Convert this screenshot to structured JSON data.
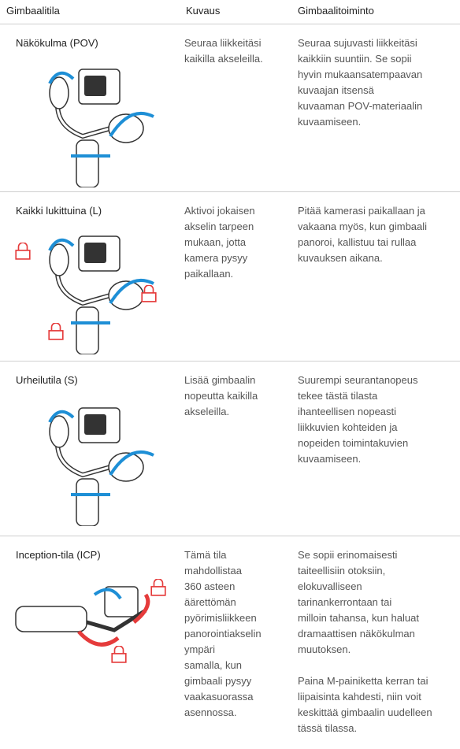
{
  "header": {
    "col1": "Gimbaalitila",
    "col2": "Kuvaus",
    "col3": "Gimbaalitoiminto"
  },
  "rows": [
    {
      "mode": "Näkökulma (POV)",
      "description": [
        "Seuraa liikkeitäsi",
        "kaikilla akseleilla."
      ],
      "function": [
        [
          "Seuraa sujuvasti liikkeitäsi",
          "kaikkiin suuntiin. Se sopii",
          "hyvin mukaansatempaavan",
          "kuvaajan itsensä",
          "kuvaaman POV-materiaalin",
          "kuvaamiseen."
        ]
      ]
    },
    {
      "mode": "Kaikki lukittuina (L)",
      "description": [
        "Aktivoi jokaisen",
        "akselin tarpeen",
        "mukaan, jotta",
        "kamera pysyy",
        "paikallaan."
      ],
      "function": [
        [
          "Pitää kamerasi paikallaan ja",
          "vakaana myös, kun gimbaali",
          "panoroi, kallistuu tai rullaa",
          "kuvauksen aikana."
        ]
      ]
    },
    {
      "mode": "Urheilutila (S)",
      "description": [
        "Lisää gimbaalin",
        "nopeutta kaikilla",
        "akseleilla."
      ],
      "function": [
        [
          "Suurempi seurantanopeus",
          "tekee tästä tilasta",
          "ihanteellisen nopeasti",
          "liikkuvien kohteiden ja",
          "nopeiden toimintakuvien",
          "kuvaamiseen."
        ]
      ]
    },
    {
      "mode": "Inception-tila (ICP)",
      "description": [
        "Tämä tila",
        "mahdollistaa",
        "360 asteen",
        "äärettömän",
        "pyörimisliikkeen",
        "panorointiakselin",
        "ympäri",
        "samalla, kun",
        "gimbaali pysyy",
        "vaakasuorassa",
        "asennossa."
      ],
      "function": [
        [
          "Se sopii erinomaisesti",
          "taiteellisiin otoksiin,",
          "elokuvalliseen",
          "tarinankerrontaan tai",
          "milloin tahansa, kun haluat",
          "dramaattisen näkökulman",
          "muutoksen."
        ],
        [
          "Paina M-painiketta kerran tai",
          "liipaisinta kahdesti, niin voit",
          "keskittää gimbaalin uudelleen",
          "tässä tilassa."
        ]
      ]
    }
  ]
}
